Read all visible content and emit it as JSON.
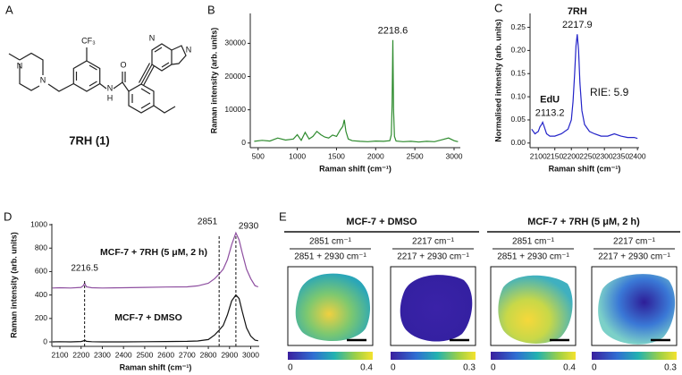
{
  "panels": [
    "A",
    "B",
    "C",
    "D",
    "E"
  ],
  "structure": {
    "atoms": [
      "N",
      "N",
      "CF₃",
      "N",
      "H",
      "O",
      "N",
      "N"
    ],
    "label": "7RH (1)"
  },
  "chart_data": [
    {
      "type": "line",
      "xlabel": "Raman shift (cm⁻¹)",
      "ylabel": "Raman intensity (arb. units)",
      "xlim": [
        400,
        3080
      ],
      "ylim": [
        -1400,
        39000
      ],
      "xticks": [
        500,
        1000,
        1500,
        2000,
        2500,
        3000
      ],
      "yticks": [
        0,
        10000,
        20000,
        30000
      ],
      "peak": 2218.6,
      "x": [
        450,
        550,
        650,
        750,
        850,
        950,
        1000,
        1050,
        1100,
        1150,
        1200,
        1250,
        1300,
        1350,
        1400,
        1450,
        1500,
        1550,
        1580,
        1600,
        1620,
        1650,
        1700,
        1800,
        1900,
        2000,
        2100,
        2180,
        2200,
        2210,
        2218.6,
        2228,
        2240,
        2260,
        2350,
        2450,
        2550,
        2650,
        2750,
        2850,
        2930,
        3000,
        3050
      ],
      "series": [
        {
          "color": "#2e8b2e",
          "values": [
            500,
            800,
            600,
            1500,
            900,
            1200,
            2500,
            800,
            3200,
            1200,
            2000,
            3500,
            2500,
            1800,
            1500,
            2400,
            2000,
            4000,
            5000,
            7000,
            3500,
            1200,
            700,
            500,
            400,
            600,
            500,
            700,
            2500,
            12000,
            31000,
            10000,
            2000,
            600,
            400,
            500,
            300,
            500,
            400,
            1000,
            1500,
            700,
            400
          ]
        }
      ]
    },
    {
      "type": "line",
      "xlabel": "Raman shift (cm⁻¹)",
      "ylabel": "Normalised intensity (arb. units)",
      "xlim": [
        2075,
        2405
      ],
      "ylim": [
        -0.01,
        0.28
      ],
      "xticks": [
        2100,
        2150,
        2200,
        2250,
        2300,
        2350,
        2400
      ],
      "yticks": [
        {
          "value": 0,
          "label": "0.00"
        },
        0.05,
        {
          "value": 0.1,
          "label": "0.10"
        },
        0.15,
        {
          "value": 0.2,
          "label": "0.20"
        },
        0.25
      ],
      "peaks": [
        2113.2,
        2217.9
      ],
      "peak_names": [
        "EdU",
        "7RH"
      ],
      "annotation": "RIE: 5.9",
      "x": [
        2080,
        2090,
        2100,
        2105,
        2110,
        2113.2,
        2118,
        2125,
        2135,
        2150,
        2170,
        2190,
        2200,
        2205,
        2210,
        2214,
        2217.9,
        2222,
        2226,
        2232,
        2240,
        2255,
        2270,
        2290,
        2310,
        2330,
        2350,
        2370,
        2390,
        2400
      ],
      "series": [
        {
          "color": "#2323c8",
          "values": [
            0.03,
            0.02,
            0.025,
            0.035,
            0.04,
            0.045,
            0.035,
            0.02,
            0.015,
            0.015,
            0.02,
            0.03,
            0.05,
            0.09,
            0.15,
            0.21,
            0.235,
            0.2,
            0.13,
            0.07,
            0.04,
            0.025,
            0.02,
            0.015,
            0.015,
            0.02,
            0.015,
            0.012,
            0.012,
            0.01
          ]
        }
      ]
    },
    {
      "type": "line",
      "xlabel": "Raman shift (cm⁻¹)",
      "ylabel": "Raman intensity (arb. units)",
      "xlim": [
        2062,
        3040
      ],
      "ylim": [
        -38,
        1008
      ],
      "xticks": [
        2100,
        2200,
        2300,
        2400,
        2500,
        2600,
        2700,
        2800,
        2900,
        3000
      ],
      "yticks": [
        0,
        200,
        400,
        600,
        800,
        1000
      ],
      "peaks": [
        2216.5,
        2851,
        2930
      ],
      "x": [
        2065,
        2100,
        2150,
        2200,
        2210,
        2216.5,
        2225,
        2250,
        2300,
        2400,
        2500,
        2600,
        2700,
        2750,
        2800,
        2830,
        2851,
        2870,
        2890,
        2910,
        2930,
        2945,
        2960,
        2980,
        3000,
        3020,
        3035
      ],
      "series": [
        {
          "name": "MCF-7 + 7RH (5 μM, 2 h)",
          "color": "#8e4fa0",
          "values": [
            460,
            462,
            460,
            465,
            480,
            500,
            470,
            462,
            460,
            462,
            465,
            468,
            470,
            478,
            500,
            540,
            580,
            620,
            700,
            830,
            930,
            870,
            760,
            620,
            540,
            480,
            470
          ]
        },
        {
          "name": "MCF-7 + DMSO",
          "color": "#111111",
          "values": [
            0,
            2,
            0,
            3,
            8,
            15,
            5,
            2,
            0,
            0,
            2,
            3,
            5,
            8,
            20,
            60,
            100,
            140,
            230,
            350,
            400,
            370,
            260,
            120,
            50,
            15,
            10
          ]
        }
      ]
    }
  ],
  "maps": {
    "groups": [
      {
        "title": "MCF-7 + DMSO",
        "panels": [
          {
            "numerator": "2851 cm⁻¹",
            "denominator": "2851 + 2930 cm⁻¹",
            "colorbar_ticks": [
              0,
              0.4
            ]
          },
          {
            "numerator": "2217 cm⁻¹",
            "denominator": "2217 + 2930 cm⁻¹",
            "colorbar_ticks": [
              0,
              0.3
            ]
          }
        ]
      },
      {
        "title": "MCF-7 + 7RH (5 μM, 2 h)",
        "panels": [
          {
            "numerator": "2851 cm⁻¹",
            "denominator": "2851 + 2930 cm⁻¹",
            "colorbar_ticks": [
              0,
              0.4
            ]
          },
          {
            "numerator": "2217 cm⁻¹",
            "denominator": "2217 + 2930 cm⁻¹",
            "colorbar_ticks": [
              0,
              0.3
            ]
          }
        ]
      }
    ]
  }
}
